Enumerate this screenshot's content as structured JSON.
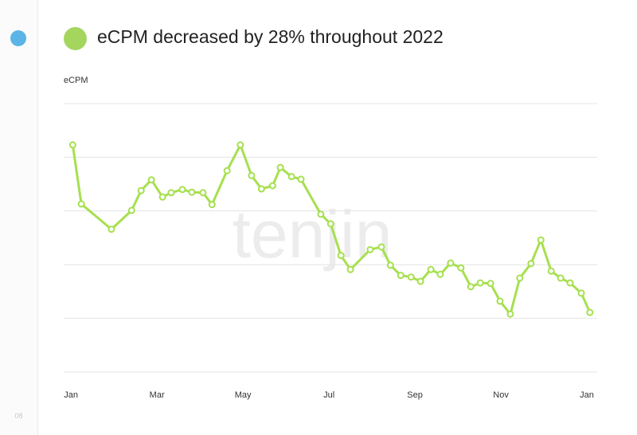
{
  "header": {
    "title": "eCPM decreased by 28% throughout 2022"
  },
  "page_number": "08",
  "watermark": "tenjin",
  "chart_data": {
    "type": "line",
    "y_label": "eCPM",
    "color": "#a6e04f",
    "grid": true,
    "xlim": [
      -0.17,
      12.24
    ],
    "ylim": [
      0,
      5
    ],
    "yticks": [
      0,
      1,
      2,
      3,
      4,
      5
    ],
    "xticks": [
      {
        "value": 0,
        "label": "Jan"
      },
      {
        "value": 2,
        "label": "Mar"
      },
      {
        "value": 4,
        "label": "May"
      },
      {
        "value": 6,
        "label": "Jul"
      },
      {
        "value": 8,
        "label": "Sep"
      },
      {
        "value": 10,
        "label": "Nov"
      },
      {
        "value": 12,
        "label": "Jan"
      }
    ],
    "x": [
      0.04,
      0.24,
      0.94,
      1.41,
      1.63,
      1.87,
      2.13,
      2.33,
      2.59,
      2.81,
      3.07,
      3.28,
      3.63,
      3.94,
      4.2,
      4.43,
      4.69,
      4.87,
      5.13,
      5.35,
      5.81,
      6.04,
      6.28,
      6.5,
      6.96,
      7.22,
      7.43,
      7.67,
      7.91,
      8.13,
      8.37,
      8.59,
      8.83,
      9.07,
      9.3,
      9.52,
      9.76,
      9.98,
      10.22,
      10.44,
      10.7,
      10.93,
      11.17,
      11.39,
      11.61,
      11.87,
      12.07
    ],
    "values": [
      4.23,
      3.13,
      2.66,
      3.01,
      3.38,
      3.58,
      3.26,
      3.34,
      3.4,
      3.35,
      3.34,
      3.12,
      3.75,
      4.23,
      3.66,
      3.41,
      3.47,
      3.81,
      3.64,
      3.59,
      2.94,
      2.76,
      2.17,
      1.91,
      2.28,
      2.33,
      1.99,
      1.8,
      1.77,
      1.69,
      1.91,
      1.82,
      2.03,
      1.94,
      1.59,
      1.66,
      1.65,
      1.32,
      1.08,
      1.75,
      2.02,
      2.46,
      1.88,
      1.75,
      1.66,
      1.47,
      1.11
    ]
  }
}
